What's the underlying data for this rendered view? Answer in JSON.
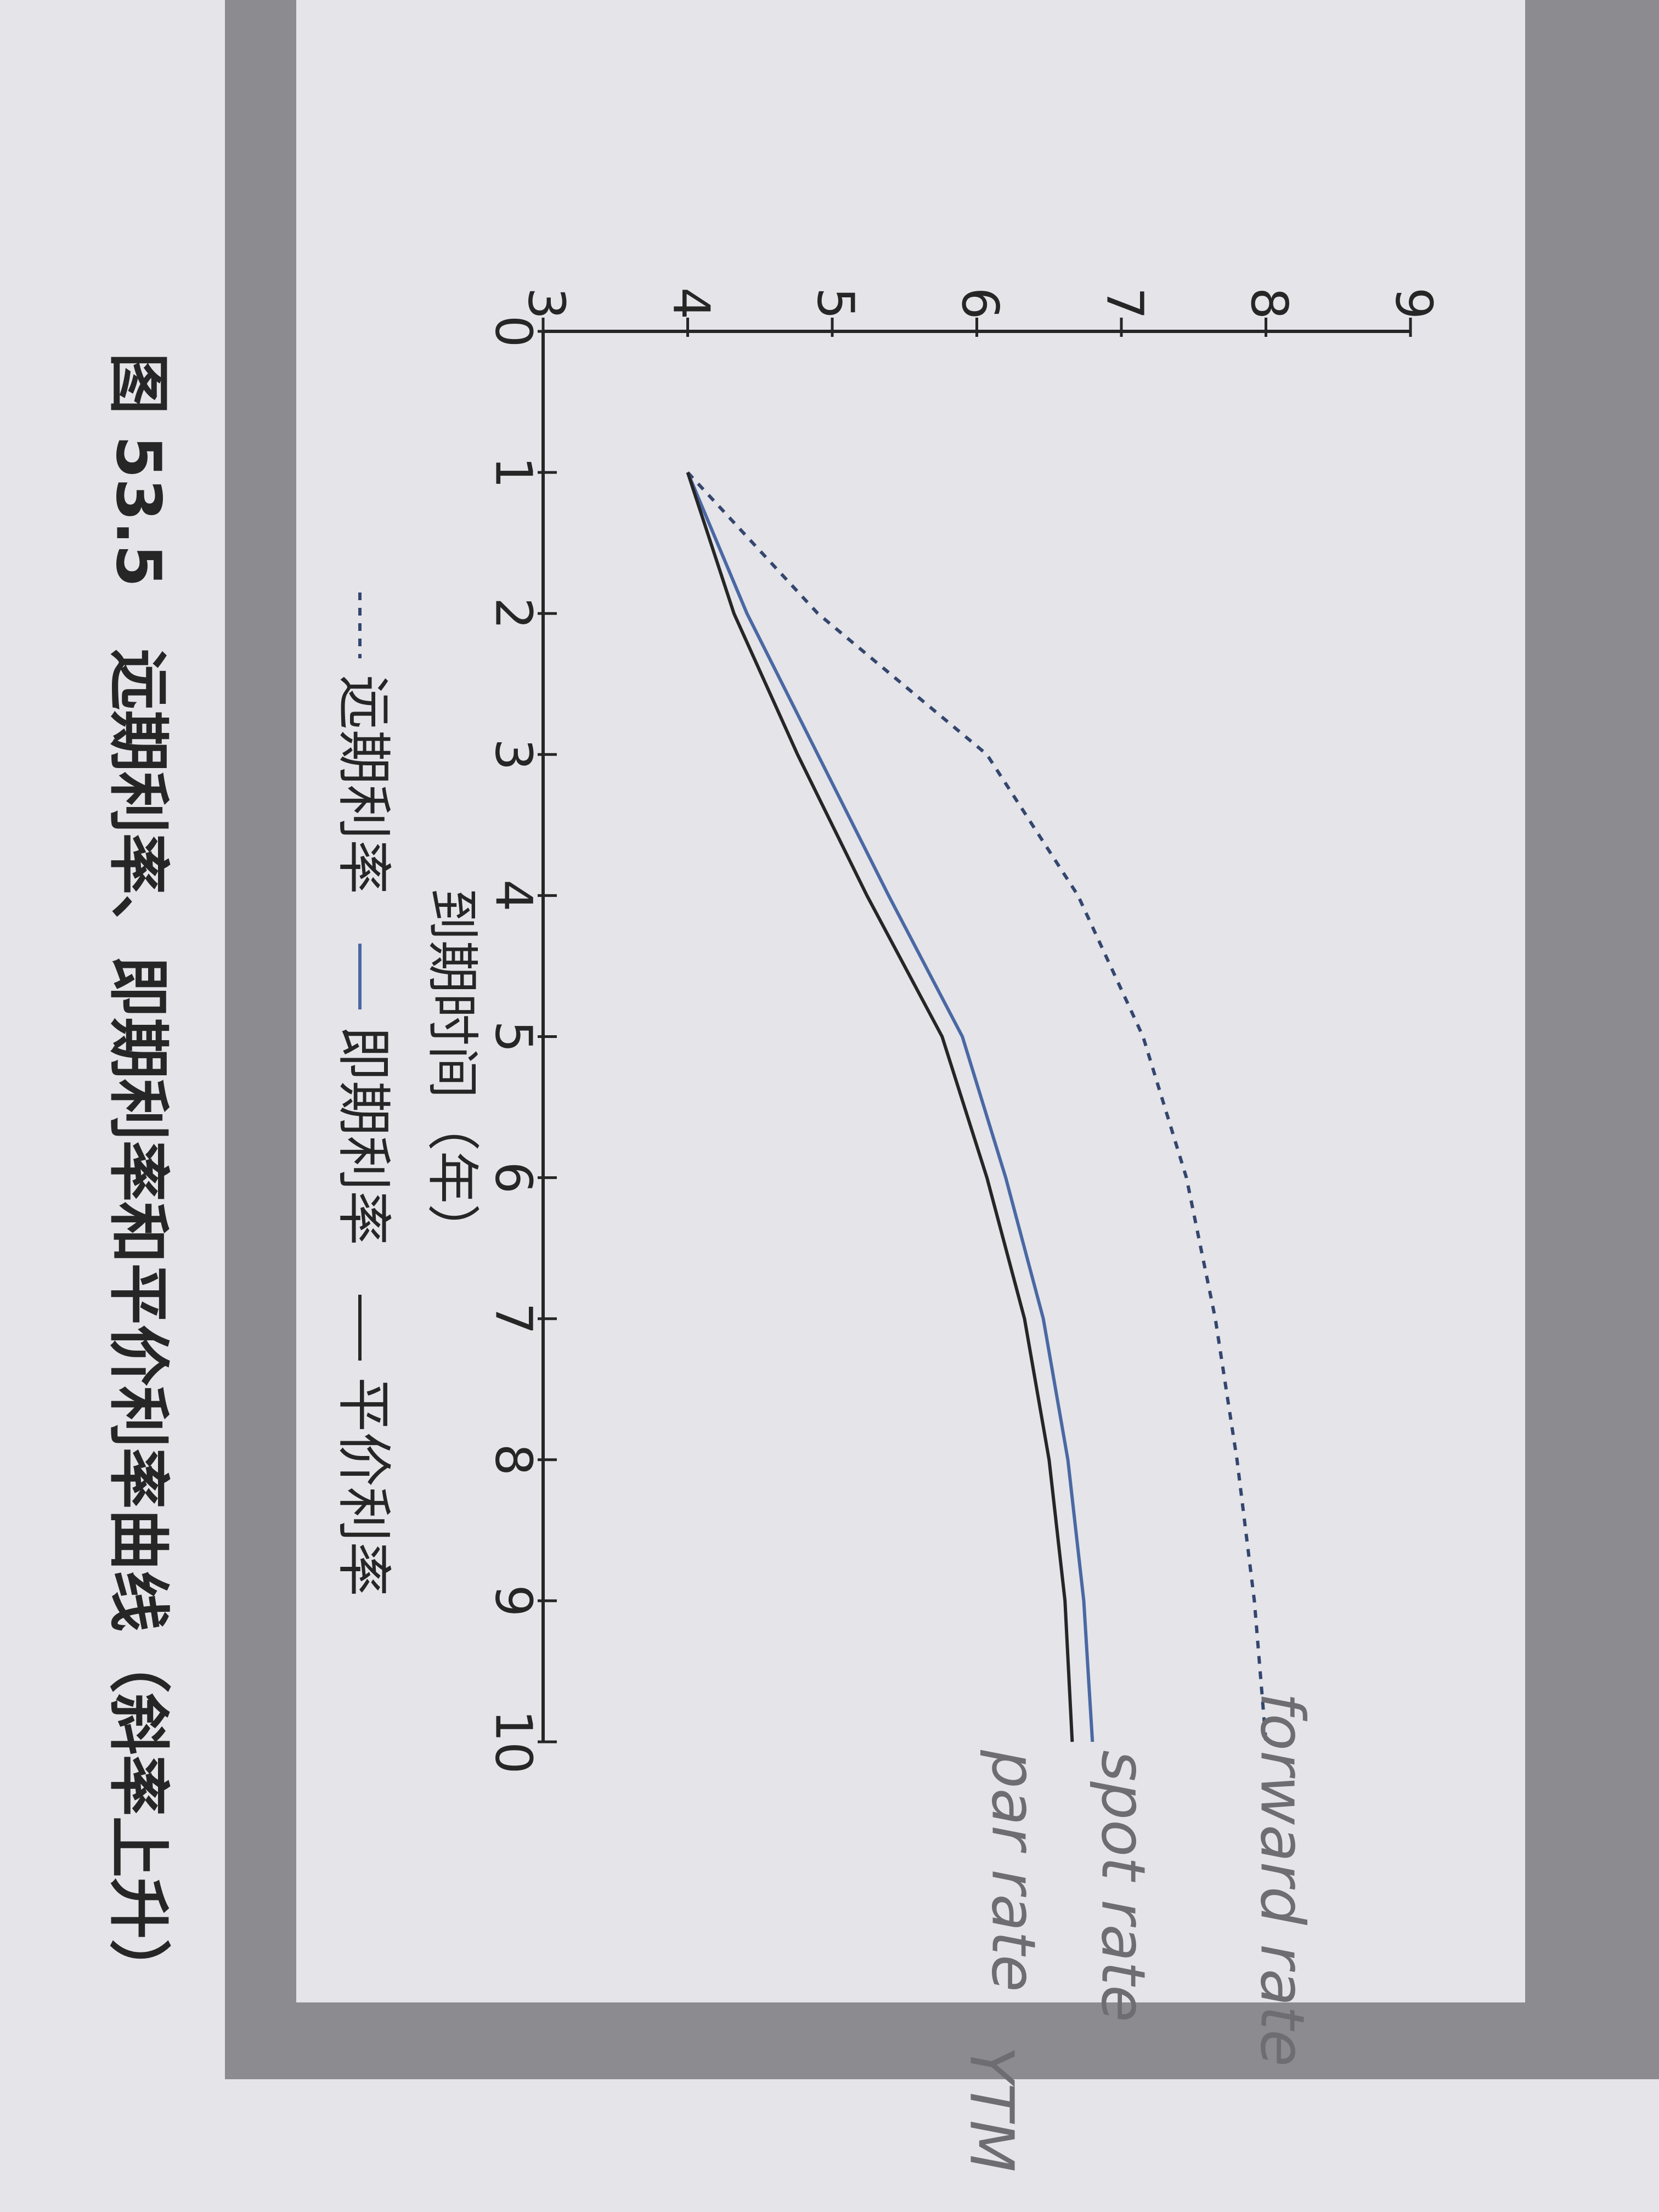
{
  "chart_data": {
    "type": "line",
    "title": "图 53.5　远期利率、即期利率和平价利率曲线（斜率上升）",
    "x_label": "到期时间（年）",
    "x": [
      1,
      2,
      3,
      4,
      5,
      6,
      7,
      8,
      9,
      10
    ],
    "series": [
      {
        "name": "远期利率",
        "color": "#34466e",
        "style": "dashed",
        "values": [
          4.0,
          4.9,
          6.07,
          6.7,
          7.15,
          7.45,
          7.65,
          7.8,
          7.92,
          8.0
        ]
      },
      {
        "name": "即期利率",
        "color": "#4a68a3",
        "style": "solid",
        "values": [
          4.0,
          4.41,
          4.9,
          5.39,
          5.9,
          6.2,
          6.46,
          6.63,
          6.74,
          6.8
        ]
      },
      {
        "name": "平价利率",
        "color": "#262626",
        "style": "solid",
        "values": [
          4.0,
          4.32,
          4.76,
          5.24,
          5.76,
          6.07,
          6.33,
          6.5,
          6.61,
          6.66
        ]
      }
    ],
    "xlim": [
      0,
      10
    ],
    "xticks": [
      0,
      1,
      2,
      3,
      4,
      5,
      6,
      7,
      8,
      9,
      10
    ],
    "ylim": [
      3,
      9
    ],
    "yticks": [
      3,
      4,
      5,
      6,
      7,
      8,
      9
    ],
    "annotations": [
      "forward rate",
      "spot rate",
      "par rate",
      "YTM"
    ]
  }
}
